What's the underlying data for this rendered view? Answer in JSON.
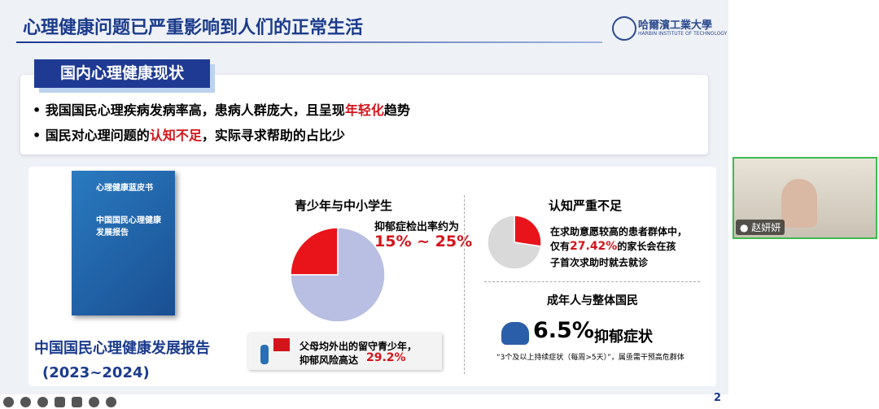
{
  "slide": {
    "title": "心理健康问题已严重影响到人们的正常生活",
    "logo": {
      "name": "哈爾濱工業大學",
      "sub": "HARBIN INSTITUTE OF TECHNOLOGY"
    },
    "section_label": "国内心理健康现状",
    "bullets": [
      [
        {
          "text": "我国国民心理疾病发病率高，患病人群庞大，且呈现"
        },
        {
          "text": "年轻化",
          "emphasis": true
        },
        {
          "text": "趋势"
        }
      ],
      [
        {
          "text": "国民对心理问题的"
        },
        {
          "text": "认知不足",
          "emphasis": true
        },
        {
          "text": "，实际寻求帮助的占比少"
        }
      ]
    ],
    "book": {
      "cover_title": "心理健康蓝皮书",
      "cover_main": "中国国民心理健康发展报告",
      "caption": "中国国民心理健康发展报告",
      "years": "(2023~2024)"
    },
    "youth": {
      "heading": "青少年与中小学生",
      "note": "抑郁症检出率约为",
      "range": "15% ~ 25%",
      "pie": {
        "values": [
          25,
          75
        ],
        "colors": [
          "#e8141a",
          "#b9bfe2"
        ]
      },
      "left_behind": {
        "line1": "父母均外出的留守青少年，",
        "line2": "抑郁风险高达",
        "value": "29.2%"
      }
    },
    "cognition": {
      "heading": "认知严重不足",
      "text1": "在求助意愿较高的患者群体中，",
      "text2a": "仅有",
      "text2b": "27.42%",
      "text2c": "的家长会在孩",
      "text3": "子首次求助时就去就诊",
      "pie": {
        "values": [
          27.42,
          72.58
        ],
        "colors": [
          "#e8141a",
          "#d9d9d9"
        ]
      }
    },
    "adults": {
      "heading": "成年人与整体国民",
      "value": "6.5%",
      "label": "抑郁症状",
      "note": "“3个及以上持续症状（每周>5天）”，属亟需干预高危群体"
    },
    "page_number": "2"
  },
  "participant": {
    "name": "赵妍妍"
  }
}
